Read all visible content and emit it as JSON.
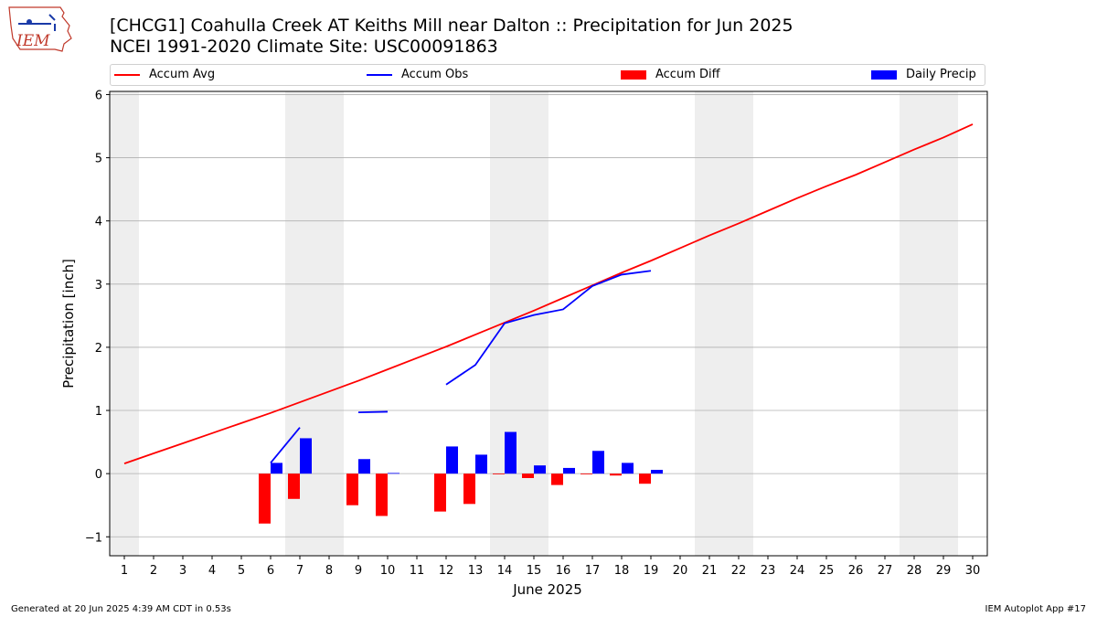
{
  "header": {
    "title_line1": "[CHCG1] Coahulla Creek  AT Keiths Mill near Dalton :: Precipitation for Jun 2025",
    "title_line2": "NCEI 1991-2020 Climate Site: USC00091863",
    "logo_text": "IEM"
  },
  "footer": {
    "generated": "Generated at 20 Jun 2025 4:39 AM CDT in 0.53s",
    "app": "IEM Autoplot App #17"
  },
  "chart_data": {
    "type": "bar",
    "xlabel": "June 2025",
    "ylabel": "Precipitation [inch]",
    "xlim": [
      0.5,
      30.5
    ],
    "ylim": [
      -1.3,
      6.05
    ],
    "x": [
      1,
      2,
      3,
      4,
      5,
      6,
      7,
      8,
      9,
      10,
      11,
      12,
      13,
      14,
      15,
      16,
      17,
      18,
      19,
      20,
      21,
      22,
      23,
      24,
      25,
      26,
      27,
      28,
      29,
      30
    ],
    "x_tick_labels": [
      "1",
      "2",
      "3",
      "4",
      "5",
      "6",
      "7",
      "8",
      "9",
      "10",
      "11",
      "12",
      "13",
      "14",
      "15",
      "16",
      "17",
      "18",
      "19",
      "20",
      "21",
      "22",
      "23",
      "24",
      "25",
      "26",
      "27",
      "28",
      "29",
      "30"
    ],
    "y_ticks": [
      -1,
      0,
      1,
      2,
      3,
      4,
      5,
      6
    ],
    "y_tick_labels": [
      "−1",
      "0",
      "1",
      "2",
      "3",
      "4",
      "5",
      "6"
    ],
    "grid": "horizontal",
    "legend_position": "top",
    "weekend_shading": [
      [
        0.5,
        1.5
      ],
      [
        6.5,
        8.5
      ],
      [
        13.5,
        15.5
      ],
      [
        20.5,
        22.5
      ],
      [
        27.5,
        29.5
      ]
    ],
    "series": [
      {
        "name": "Accum Avg",
        "kind": "line",
        "color": "#ff0000",
        "values": [
          0.16,
          0.32,
          0.48,
          0.64,
          0.8,
          0.96,
          1.13,
          1.3,
          1.47,
          1.65,
          1.83,
          2.01,
          2.2,
          2.39,
          2.58,
          2.78,
          2.98,
          3.18,
          3.37,
          3.57,
          3.77,
          3.96,
          4.16,
          4.36,
          4.55,
          4.73,
          4.93,
          5.13,
          5.32,
          5.53
        ]
      },
      {
        "name": "Accum Obs",
        "kind": "line",
        "color": "#0000ff",
        "values": [
          null,
          null,
          null,
          null,
          null,
          0.17,
          0.73,
          null,
          0.97,
          0.98,
          null,
          1.41,
          1.72,
          2.38,
          2.51,
          2.6,
          2.97,
          3.15,
          3.21,
          null,
          null,
          null,
          null,
          null,
          null,
          null,
          null,
          null,
          null,
          null
        ]
      },
      {
        "name": "Accum Diff",
        "kind": "bar",
        "color": "#ff0000",
        "values": [
          null,
          null,
          null,
          null,
          null,
          -0.79,
          -0.4,
          null,
          -0.5,
          -0.67,
          null,
          -0.6,
          -0.48,
          -0.01,
          -0.07,
          -0.18,
          -0.01,
          -0.03,
          -0.16,
          null,
          null,
          null,
          null,
          null,
          null,
          null,
          null,
          null,
          null,
          null
        ]
      },
      {
        "name": "Daily Precip",
        "kind": "bar",
        "color": "#0000ff",
        "values": [
          null,
          null,
          null,
          null,
          null,
          0.17,
          0.56,
          null,
          0.23,
          0.01,
          null,
          0.43,
          0.3,
          0.66,
          0.13,
          0.09,
          0.36,
          0.17,
          0.06,
          null,
          null,
          null,
          null,
          null,
          null,
          null,
          null,
          null,
          null,
          null
        ]
      }
    ]
  }
}
